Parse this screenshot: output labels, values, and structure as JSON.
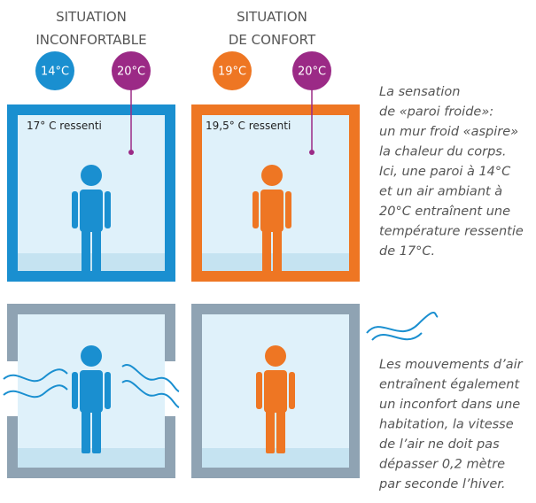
{
  "panels": [
    {
      "heading": [
        "SITUATION",
        "INCONFORTABLE"
      ],
      "wall_temp": "14°C",
      "air_temp": "20°C",
      "felt": "17° C ressenti"
    },
    {
      "heading": [
        "SITUATION",
        "DE CONFORT"
      ],
      "wall_temp": "19°C",
      "air_temp": "20°C",
      "felt": "19,5° C ressenti"
    }
  ],
  "notes": [
    {
      "lines": [
        "La sensation",
        "de «paroi froide»:",
        "un mur froid «aspire»",
        "la chaleur du corps.",
        "Ici, une paroi à 14°C",
        "et un air ambiant à",
        "20°C entraînent une",
        "température ressentie",
        "de 17°C."
      ]
    },
    {
      "lines": [
        "Les mouvements d’air",
        "entraînent également",
        "un inconfort dans une",
        "habitation, la vitesse",
        "de l’air ne doit pas",
        "dépasser 0,2 mètre",
        "par seconde l’hiver."
      ]
    }
  ]
}
